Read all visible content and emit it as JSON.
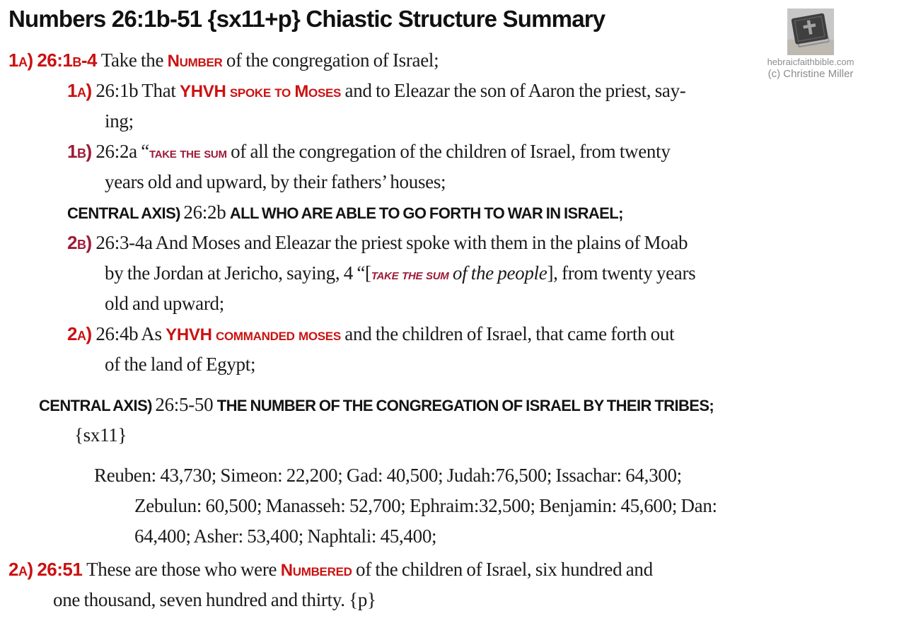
{
  "header": {
    "title": "Numbers 26:1b-51 {sx11+p} Chiastic Structure Summary",
    "logo": {
      "icon": "bible-with-cross-icon",
      "site": "hebraicfaithbible.com",
      "copyright": "(c) Christine Miller"
    }
  },
  "colors": {
    "accent_red": "#cc1111",
    "accent_maroon": "#9e1b38",
    "text_black": "#1b1b1b",
    "logo_gray": "#8d8d8d",
    "background": "#ffffff"
  },
  "tribes": [
    {
      "name": "Reuben",
      "count": "43,730"
    },
    {
      "name": "Simeon",
      "count": "22,200"
    },
    {
      "name": "Gad",
      "count": "40,500"
    },
    {
      "name": "Judah",
      "count": "76,500"
    },
    {
      "name": "Issachar",
      "count": "64,300"
    },
    {
      "name": "Zebulun",
      "count": "60,500"
    },
    {
      "name": "Manasseh",
      "count": "52,700"
    },
    {
      "name": "Ephraim",
      "count": "32,500"
    },
    {
      "name": "Benjamin",
      "count": "45,600"
    },
    {
      "name": "Dan",
      "count": "64,400"
    },
    {
      "name": "Asher",
      "count": "53,400"
    },
    {
      "name": "Naphtali",
      "count": "45,400"
    }
  ],
  "document": {
    "lines": [
      {
        "name": "outer-1a-line",
        "indent": "l0",
        "segments": [
          {
            "t": "1a) 26:1b-4 ",
            "s": "mr"
          },
          {
            "t": "Take the ",
            "s": "sf"
          },
          {
            "t": "Number",
            "s": "rc"
          },
          {
            "t": " of the congregation of Israel;",
            "s": "sf"
          }
        ]
      },
      {
        "name": "inner-1a-line-1",
        "indent": "l1",
        "segments": [
          {
            "t": "1a) ",
            "s": "mr"
          },
          {
            "t": "26:1b That ",
            "s": "sf"
          },
          {
            "t": "YHVH spoke to Moses",
            "s": "rc"
          },
          {
            "t": " and to Eleazar the son of Aaron the priest, say-",
            "s": "sf"
          }
        ]
      },
      {
        "name": "inner-1a-line-2",
        "indent": "l1c",
        "segments": [
          {
            "t": "ing;",
            "s": "sf"
          }
        ]
      },
      {
        "name": "inner-1b-line-1",
        "indent": "l1",
        "segments": [
          {
            "t": "1b) ",
            "s": "mm"
          },
          {
            "t": "26:2a “",
            "s": "sf"
          },
          {
            "t": "take the sum",
            "s": "mc"
          },
          {
            "t": " of all the congregation of the children of Israel, from twenty",
            "s": "sf"
          }
        ]
      },
      {
        "name": "inner-1b-line-2",
        "indent": "l1c",
        "segments": [
          {
            "t": "years old and upward, by their fathers’ houses;",
            "s": "sf"
          }
        ]
      },
      {
        "name": "inner-central-axis-line",
        "indent": "l1",
        "segments": [
          {
            "t": "CENTRAL AXIS) ",
            "s": "mb"
          },
          {
            "t": "26:2b ",
            "s": "sf"
          },
          {
            "t": "ALL WHO ARE ABLE TO GO FORTH TO WAR IN ISRAEL;",
            "s": "bc"
          }
        ]
      },
      {
        "name": "inner-2b-line-1",
        "indent": "l1",
        "segments": [
          {
            "t": "2b) ",
            "s": "mm"
          },
          {
            "t": "26:3-4a And Moses and Eleazar the priest spoke with them in the plains of Moab",
            "s": "sf"
          }
        ]
      },
      {
        "name": "inner-2b-line-2",
        "indent": "l1c",
        "segments": [
          {
            "t": "by the Jordan at Jericho, saying, 4 “[",
            "s": "sf"
          },
          {
            "t": "take the sum",
            "s": "mi"
          },
          {
            "t": " of the people",
            "s": "si"
          },
          {
            "t": "], from twenty years",
            "s": "sf"
          }
        ]
      },
      {
        "name": "inner-2b-line-3",
        "indent": "l1c",
        "segments": [
          {
            "t": "old and upward;",
            "s": "sf"
          }
        ]
      },
      {
        "name": "inner-2a-line-1",
        "indent": "l1",
        "segments": [
          {
            "t": "2a) ",
            "s": "mr"
          },
          {
            "t": "26:4b As ",
            "s": "sf"
          },
          {
            "t": "YHVH commanded moses",
            "s": "rc"
          },
          {
            "t": " and the children of Israel, that came forth out",
            "s": "sf"
          }
        ]
      },
      {
        "name": "inner-2a-line-2",
        "indent": "l1c",
        "segments": [
          {
            "t": "of the land of Egypt;",
            "s": "sf"
          }
        ]
      },
      {
        "name": "outer-central-axis-line",
        "indent": "cax",
        "gap": true,
        "segments": [
          {
            "t": "CENTRAL AXIS) ",
            "s": "mb"
          },
          {
            "t": "26:5-50 ",
            "s": "sf"
          },
          {
            "t": "THE NUMBER OF THE CONGREGATION OF ISRAEL BY THEIR TRIBES;",
            "s": "bc"
          }
        ]
      },
      {
        "name": "sx11-tag-line",
        "indent": "sx",
        "segments": [
          {
            "t": "{sx11}",
            "s": "sf"
          }
        ]
      },
      {
        "name": "tribes-line-1",
        "indent": "t1",
        "gap": true,
        "segments": [
          {
            "t": "Reuben: 43,730; Simeon: 22,200; Gad: 40,500; Judah:76,500; Issachar: 64,300;",
            "s": "sf"
          }
        ]
      },
      {
        "name": "tribes-line-2",
        "indent": "tc",
        "segments": [
          {
            "t": "Zebulun: 60,500; Manasseh: 52,700; Ephraim:32,500; Benjamin: 45,600; Dan:",
            "s": "sf"
          }
        ]
      },
      {
        "name": "tribes-line-3",
        "indent": "tc",
        "segments": [
          {
            "t": "64,400; Asher: 53,400; Naphtali: 45,400;",
            "s": "sf"
          }
        ]
      },
      {
        "name": "outer-2a-line-1",
        "indent": "o2",
        "gap_sm": true,
        "segments": [
          {
            "t": "2a) 26:51 ",
            "s": "mr"
          },
          {
            "t": "These are those who were ",
            "s": "sf"
          },
          {
            "t": "Numbered",
            "s": "rc"
          },
          {
            "t": " of the children of Israel, six hundred and",
            "s": "sf"
          }
        ]
      },
      {
        "name": "outer-2a-line-2",
        "indent": "o2c",
        "segments": [
          {
            "t": "one thousand, seven hundred and thirty. {p}",
            "s": "sf"
          }
        ]
      }
    ]
  }
}
